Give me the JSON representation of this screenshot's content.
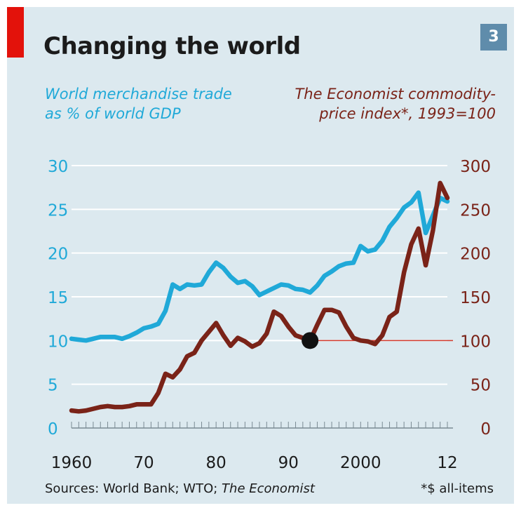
{
  "header": {
    "title": "Changing the world",
    "chart_number": "3"
  },
  "labels": {
    "left_axis_title_line1": "World merchandise trade",
    "left_axis_title_line2": "as % of world GDP",
    "right_axis_title_line1": "The Economist commodity-",
    "right_axis_title_line2": "price index*, 1993=100"
  },
  "footer": {
    "sources_prefix": "Sources: World Bank; WTO; ",
    "sources_italic": "The Economist",
    "footnote": "*$ all-items"
  },
  "colors": {
    "trade": "#20a9d8",
    "commodity": "#7a2318",
    "reference": "#d33a2c",
    "grid": "#ffffff",
    "background": "#dce9ef",
    "title_accent": "#e3120b"
  },
  "chart_data": {
    "type": "line",
    "x_range": [
      1960,
      2012
    ],
    "x_tick_values": [
      1960,
      1970,
      1980,
      1990,
      2000,
      2012
    ],
    "x_tick_labels": [
      "1960",
      "70",
      "80",
      "90",
      "2000",
      "12"
    ],
    "left_axis": {
      "ylim": [
        0,
        30
      ],
      "ticks": [
        0,
        5,
        10,
        15,
        20,
        25,
        30
      ]
    },
    "right_axis": {
      "ylim": [
        0,
        300
      ],
      "ticks": [
        0,
        50,
        100,
        150,
        200,
        250,
        300
      ]
    },
    "grid": true,
    "reference_line": {
      "axis": "right",
      "value": 100
    },
    "marker": {
      "x": 1993,
      "value": 100,
      "axis": "right"
    },
    "series": [
      {
        "axis": "left",
        "x": [
          1960,
          1961,
          1962,
          1963,
          1964,
          1965,
          1966,
          1967,
          1968,
          1969,
          1970,
          1971,
          1972,
          1973,
          1974,
          1975,
          1976,
          1977,
          1978,
          1979,
          1980,
          1981,
          1982,
          1983,
          1984,
          1985,
          1986,
          1987,
          1988,
          1989,
          1990,
          1991,
          1992,
          1993,
          1994,
          1995,
          1996,
          1997,
          1998,
          1999,
          2000,
          2001,
          2002,
          2003,
          2004,
          2005,
          2006,
          2007,
          2008,
          2009,
          2010,
          2011,
          2012
        ],
        "values": [
          10.2,
          10.1,
          10.0,
          10.2,
          10.4,
          10.4,
          10.4,
          10.2,
          10.5,
          10.9,
          11.4,
          11.6,
          11.9,
          13.4,
          16.4,
          15.9,
          16.4,
          16.3,
          16.4,
          17.8,
          18.9,
          18.3,
          17.3,
          16.6,
          16.8,
          16.2,
          15.2,
          15.6,
          16.0,
          16.4,
          16.3,
          15.9,
          15.8,
          15.5,
          16.3,
          17.4,
          17.9,
          18.5,
          18.8,
          18.9,
          20.8,
          20.2,
          20.4,
          21.4,
          23.0,
          24.0,
          25.2,
          25.8,
          26.9,
          22.3,
          24.3,
          26.3,
          25.9
        ]
      },
      {
        "axis": "right",
        "x": [
          1960,
          1961,
          1962,
          1963,
          1964,
          1965,
          1966,
          1967,
          1968,
          1969,
          1970,
          1971,
          1972,
          1973,
          1974,
          1975,
          1976,
          1977,
          1978,
          1979,
          1980,
          1981,
          1982,
          1983,
          1984,
          1985,
          1986,
          1987,
          1988,
          1989,
          1990,
          1991,
          1992,
          1993,
          1994,
          1995,
          1996,
          1997,
          1998,
          1999,
          2000,
          2001,
          2002,
          2003,
          2004,
          2005,
          2006,
          2007,
          2008,
          2009,
          2010,
          2011,
          2012
        ],
        "values": [
          20,
          19,
          20,
          22,
          24,
          25,
          24,
          24,
          25,
          27,
          27,
          27,
          40,
          62,
          58,
          67,
          82,
          86,
          100,
          110,
          120,
          106,
          94,
          103,
          99,
          93,
          97,
          108,
          133,
          128,
          116,
          106,
          103,
          100,
          118,
          135,
          135,
          132,
          116,
          103,
          100,
          99,
          96,
          106,
          127,
          133,
          178,
          210,
          228,
          186,
          226,
          280,
          263
        ]
      }
    ]
  }
}
